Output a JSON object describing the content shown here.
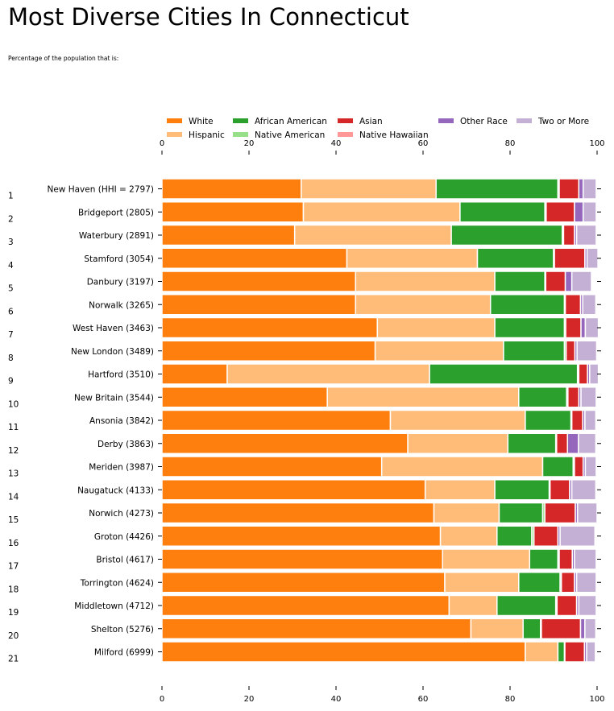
{
  "chart_data": {
    "type": "bar",
    "orientation": "horizontal",
    "stacked": true,
    "title": "Most Diverse Cities In Connecticut",
    "subtitle": "Percentage of the population that is:",
    "xlim": [
      0,
      100
    ],
    "xticks": [
      "0",
      "20",
      "40",
      "60",
      "80",
      "100"
    ],
    "legend_position": "top",
    "ranks": [
      "1",
      "2",
      "3",
      "4",
      "5",
      "6",
      "7",
      "8",
      "9",
      "10",
      "11",
      "12",
      "13",
      "14",
      "15",
      "16",
      "17",
      "18",
      "19",
      "20",
      "21"
    ],
    "categories": [
      "New Haven (HHI = 2797)",
      "Bridgeport (2805)",
      "Waterbury (2891)",
      "Stamford (3054)",
      "Danbury (3197)",
      "Norwalk (3265)",
      "West Haven (3463)",
      "New London (3489)",
      "Hartford (3510)",
      "New Britain (3544)",
      "Ansonia (3842)",
      "Derby (3863)",
      "Meriden (3987)",
      "Naugatuck (4133)",
      "Norwich (4273)",
      "Groton (4426)",
      "Bristol (4617)",
      "Torrington (4624)",
      "Middletown (4712)",
      "Shelton (5276)",
      "Milford (6999)"
    ],
    "series": [
      {
        "name": "White",
        "color": "#ff7f0e",
        "values": [
          32,
          32.5,
          30.5,
          42.5,
          44.5,
          44.5,
          49.5,
          49,
          15,
          38,
          52.5,
          56.5,
          50.5,
          60.5,
          62.5,
          64,
          64.5,
          65,
          66,
          71,
          83.5
        ]
      },
      {
        "name": "Hispanic",
        "color": "#ffbb78",
        "values": [
          31,
          36,
          36,
          30,
          32,
          31,
          27,
          29.5,
          46.5,
          44,
          31,
          23,
          37,
          16,
          15,
          13,
          20,
          17,
          11,
          12,
          7.5
        ]
      },
      {
        "name": "African American",
        "color": "#2ca02c",
        "values": [
          28,
          19.5,
          25.5,
          17.5,
          11.5,
          17,
          16,
          14,
          34,
          11,
          10.5,
          11,
          7,
          12.5,
          10,
          8,
          6.5,
          9.5,
          13.5,
          4,
          1.5
        ]
      },
      {
        "name": "Native American",
        "color": "#98df8a",
        "values": [
          0.3,
          0.3,
          0.3,
          0.2,
          0.2,
          0.2,
          0.3,
          0.4,
          0.3,
          0.3,
          0.2,
          0.2,
          0.3,
          0.2,
          0.5,
          0.5,
          0.3,
          0.3,
          0.3,
          0.2,
          0.1
        ]
      },
      {
        "name": "Asian",
        "color": "#d62728",
        "values": [
          4.5,
          6.5,
          2.5,
          7,
          4.5,
          3.5,
          3.5,
          2,
          2,
          2.5,
          2.5,
          2.5,
          2,
          4.5,
          7,
          5.5,
          3,
          3,
          4.5,
          9,
          4.5
        ]
      },
      {
        "name": "Native Hawaiian",
        "color": "#ff9896",
        "values": [
          0,
          0,
          0,
          0,
          0,
          0,
          0,
          0,
          0,
          0,
          0,
          0,
          0,
          0,
          0,
          0,
          0,
          0,
          0,
          0,
          0
        ]
      },
      {
        "name": "Other Race",
        "color": "#9467bd",
        "values": [
          1,
          2,
          0.5,
          0.5,
          1.5,
          0.5,
          1,
          0.5,
          0.5,
          0.5,
          0.5,
          2.5,
          0.5,
          0.5,
          0.5,
          0.5,
          0.5,
          0.5,
          0.5,
          1,
          0.5
        ]
      },
      {
        "name": "Two or More",
        "color": "#c5b0d5",
        "values": [
          3,
          3,
          4.5,
          2.5,
          4.5,
          3,
          3,
          4.5,
          2,
          3.5,
          2.5,
          4,
          2.5,
          5.5,
          4.5,
          8,
          5,
          4.5,
          4,
          2.5,
          2
        ]
      }
    ]
  }
}
